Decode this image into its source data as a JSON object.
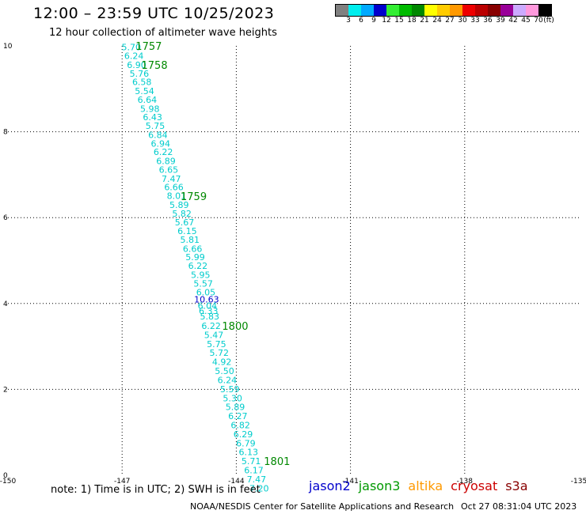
{
  "header": {
    "title": "12:00 – 23:59 UTC 10/25/2023",
    "subtitle": "12 hour collection of altimeter wave heights"
  },
  "color_scale": {
    "labels": [
      "3",
      "6",
      "9",
      "12",
      "15",
      "18",
      "21",
      "24",
      "27",
      "30",
      "33",
      "36",
      "39",
      "42",
      "45",
      "70"
    ],
    "unit": "(ft)",
    "colors": [
      "#808080",
      "#00eeee",
      "#00aaff",
      "#0000cc",
      "#33ee33",
      "#00bb00",
      "#008800",
      "#ffff00",
      "#ffcc00",
      "#ff9900",
      "#ee0000",
      "#bb0000",
      "#880000",
      "#990099",
      "#ccaaff",
      "#ff99dd",
      "#000000"
    ]
  },
  "footer": {
    "note": "note:  1) Time is in UTC;  2) SWH is in feet",
    "credit": "NOAA/NESDIS Center for Satellite Applications and Research",
    "timestamp": "Oct 27 08:31:04 UTC 2023",
    "satellites": [
      {
        "name": "jason2",
        "color": "#0000cc"
      },
      {
        "name": "jason3",
        "color": "#009900"
      },
      {
        "name": "altika",
        "color": "#ff9900"
      },
      {
        "name": "cryosat",
        "color": "#cc0000"
      },
      {
        "name": "s3a",
        "color": "#880000"
      }
    ]
  },
  "chart_data": {
    "type": "scatter",
    "xlim": [
      -150,
      -135
    ],
    "ylim": [
      0,
      10
    ],
    "x_ticks": [
      "-150",
      "-147",
      "-144",
      "-141",
      "-138",
      "-135"
    ],
    "y_ticks": [
      "0",
      "2",
      "4",
      "6",
      "8",
      "10"
    ],
    "grid": true,
    "point_color": "#00cccc",
    "time_color": "#008800",
    "highlight_color": "#0000cc",
    "points": [
      {
        "x": -146.76,
        "y": 9.97,
        "label": "5.70"
      },
      {
        "x": -146.69,
        "y": 9.77,
        "label": "6.24"
      },
      {
        "x": -146.62,
        "y": 9.56,
        "label": "6.90"
      },
      {
        "x": -146.55,
        "y": 9.36,
        "label": "5.76"
      },
      {
        "x": -146.48,
        "y": 9.16,
        "label": "6.58"
      },
      {
        "x": -146.41,
        "y": 8.95,
        "label": "5.54"
      },
      {
        "x": -146.34,
        "y": 8.75,
        "label": "6.64"
      },
      {
        "x": -146.27,
        "y": 8.54,
        "label": "5.98"
      },
      {
        "x": -146.2,
        "y": 8.34,
        "label": "6.43"
      },
      {
        "x": -146.13,
        "y": 8.14,
        "label": "5.75"
      },
      {
        "x": -146.06,
        "y": 7.93,
        "label": "6.84"
      },
      {
        "x": -145.99,
        "y": 7.73,
        "label": "6.94"
      },
      {
        "x": -145.92,
        "y": 7.53,
        "label": "6.22"
      },
      {
        "x": -145.85,
        "y": 7.32,
        "label": "6.89"
      },
      {
        "x": -145.78,
        "y": 7.12,
        "label": "6.65"
      },
      {
        "x": -145.71,
        "y": 6.91,
        "label": "7.47"
      },
      {
        "x": -145.64,
        "y": 6.71,
        "label": "6.66"
      },
      {
        "x": -145.57,
        "y": 6.51,
        "label": "8.01"
      },
      {
        "x": -145.5,
        "y": 6.3,
        "label": "5.89"
      },
      {
        "x": -145.43,
        "y": 6.1,
        "label": "5.82"
      },
      {
        "x": -145.36,
        "y": 5.89,
        "label": "5.67"
      },
      {
        "x": -145.29,
        "y": 5.69,
        "label": "6.15"
      },
      {
        "x": -145.22,
        "y": 5.49,
        "label": "5.81"
      },
      {
        "x": -145.15,
        "y": 5.28,
        "label": "6.66"
      },
      {
        "x": -145.08,
        "y": 5.08,
        "label": "5.99"
      },
      {
        "x": -145.01,
        "y": 4.88,
        "label": "6.22"
      },
      {
        "x": -144.94,
        "y": 4.67,
        "label": "5.95"
      },
      {
        "x": -144.87,
        "y": 4.47,
        "label": "5.57"
      },
      {
        "x": -144.8,
        "y": 4.26,
        "label": "6.05"
      },
      {
        "x": -144.78,
        "y": 4.1,
        "label": "10.63",
        "highlight": true
      },
      {
        "x": -144.76,
        "y": 3.95,
        "label": "6.04"
      },
      {
        "x": -144.73,
        "y": 3.83,
        "label": "6.33"
      },
      {
        "x": -144.7,
        "y": 3.7,
        "label": "5.83"
      },
      {
        "x": -144.66,
        "y": 3.48,
        "label": "6.22"
      },
      {
        "x": -144.59,
        "y": 3.27,
        "label": "5.47"
      },
      {
        "x": -144.52,
        "y": 3.06,
        "label": "5.75"
      },
      {
        "x": -144.45,
        "y": 2.85,
        "label": "5.72"
      },
      {
        "x": -144.38,
        "y": 2.64,
        "label": "4.92"
      },
      {
        "x": -144.31,
        "y": 2.43,
        "label": "5.50"
      },
      {
        "x": -144.24,
        "y": 2.22,
        "label": "6.24"
      },
      {
        "x": -144.17,
        "y": 2.01,
        "label": "5.59"
      },
      {
        "x": -144.1,
        "y": 1.8,
        "label": "5.30"
      },
      {
        "x": -144.03,
        "y": 1.59,
        "label": "5.89"
      },
      {
        "x": -143.96,
        "y": 1.38,
        "label": "6.27"
      },
      {
        "x": -143.89,
        "y": 1.17,
        "label": "6.82"
      },
      {
        "x": -143.82,
        "y": 0.96,
        "label": "6.29"
      },
      {
        "x": -143.75,
        "y": 0.75,
        "label": "6.79"
      },
      {
        "x": -143.68,
        "y": 0.54,
        "label": "6.13"
      },
      {
        "x": -143.61,
        "y": 0.33,
        "label": "5.71"
      },
      {
        "x": -143.54,
        "y": 0.12,
        "label": "6.17"
      },
      {
        "x": -143.47,
        "y": -0.09,
        "label": "7.47"
      },
      {
        "x": -143.4,
        "y": -0.3,
        "label": "7.20"
      }
    ],
    "time_labels": [
      {
        "x": -146.3,
        "y": 10.0,
        "label": "1757"
      },
      {
        "x": -146.15,
        "y": 9.56,
        "label": "1758"
      },
      {
        "x": -145.12,
        "y": 6.5,
        "label": "1759"
      },
      {
        "x": -144.03,
        "y": 3.48,
        "label": "1800"
      },
      {
        "x": -142.93,
        "y": 0.33,
        "label": "1801"
      }
    ]
  }
}
